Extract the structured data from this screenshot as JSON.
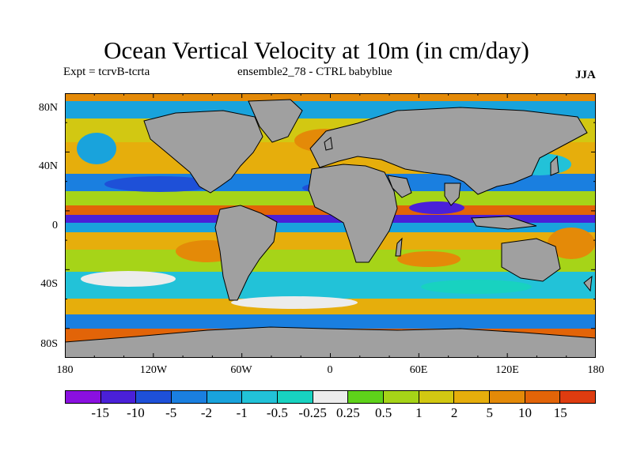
{
  "title": "Ocean Vertical Velocity at 10m (in cm/day)",
  "subtitle_left": "Expt = tcrvB-tcrta",
  "subtitle_center": "ensemble2_78 - CTRL babyblue",
  "season": "JJA",
  "map": {
    "lat_ticks": [
      "80N",
      "40N",
      "0",
      "40S",
      "80S"
    ],
    "lon_ticks": [
      "180",
      "120W",
      "60W",
      "0",
      "60E",
      "120E",
      "180"
    ],
    "land_color": "#a0a0a0",
    "coast_color": "#000000"
  },
  "colorbar": {
    "colors": [
      "#8a10e0",
      "#4a20d8",
      "#1e50d8",
      "#1a7fe0",
      "#19a3dc",
      "#22c2d8",
      "#18d2c0",
      "#ececec",
      "#5ed21a",
      "#a6d418",
      "#d2c812",
      "#e6ae0c",
      "#e48a08",
      "#e26408",
      "#de3c10"
    ],
    "labels": [
      "-15",
      "-10",
      "-5",
      "-2",
      "-1",
      "-0.5",
      "-0.25",
      "0.25",
      "0.5",
      "1",
      "2",
      "5",
      "10",
      "15"
    ]
  }
}
